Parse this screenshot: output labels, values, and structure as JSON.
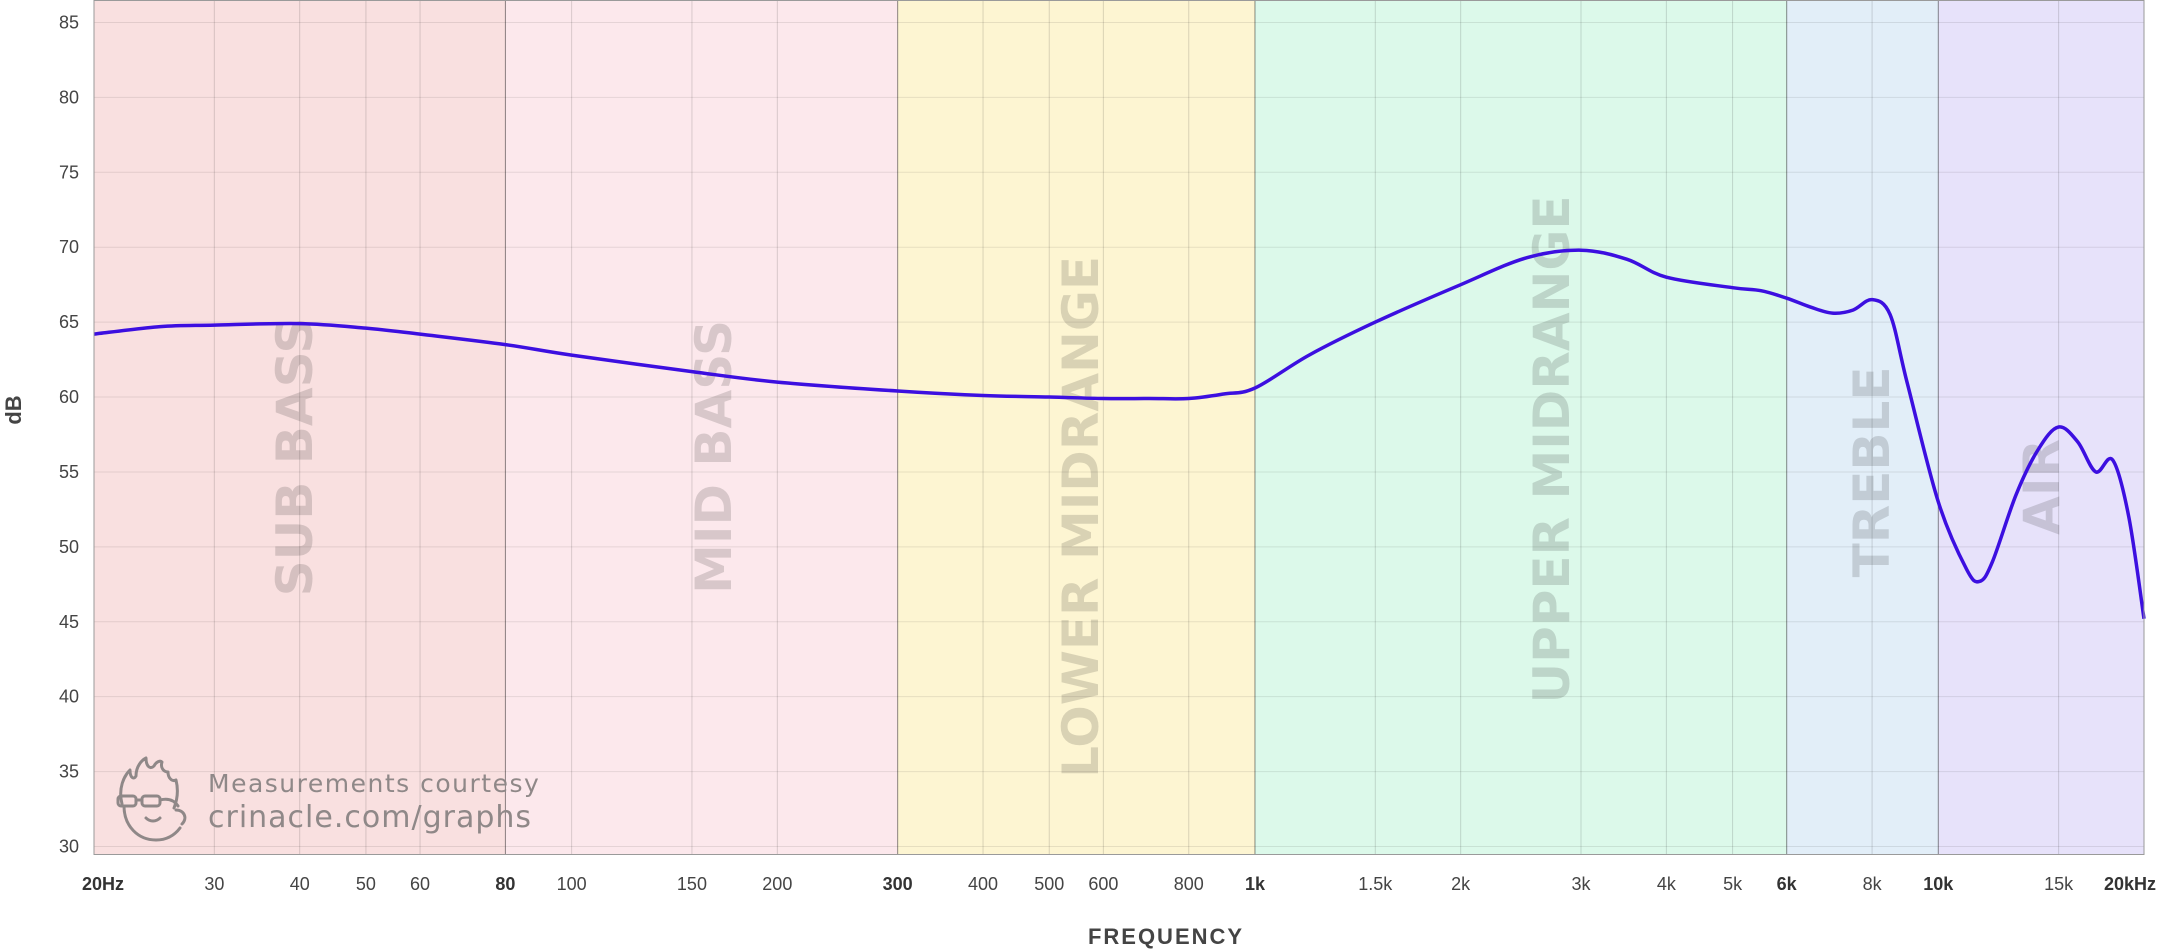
{
  "chart_data": {
    "type": "line",
    "xlabel": "FREQUENCY",
    "ylabel": "dB",
    "x_scale": "log",
    "xlim": [
      20,
      20000
    ],
    "ylim": [
      29.5,
      86.5
    ],
    "grid": true,
    "y_ticks": [
      30,
      35,
      40,
      45,
      50,
      55,
      60,
      65,
      70,
      75,
      80,
      85
    ],
    "x_ticks": [
      {
        "value": 20,
        "label": "20Hz",
        "boundary": true
      },
      {
        "value": 30,
        "label": "30",
        "boundary": false
      },
      {
        "value": 40,
        "label": "40",
        "boundary": false
      },
      {
        "value": 50,
        "label": "50",
        "boundary": false
      },
      {
        "value": 60,
        "label": "60",
        "boundary": false
      },
      {
        "value": 80,
        "label": "80",
        "boundary": true
      },
      {
        "value": 100,
        "label": "100",
        "boundary": false
      },
      {
        "value": 150,
        "label": "150",
        "boundary": false
      },
      {
        "value": 200,
        "label": "200",
        "boundary": false
      },
      {
        "value": 300,
        "label": "300",
        "boundary": true
      },
      {
        "value": 400,
        "label": "400",
        "boundary": false
      },
      {
        "value": 500,
        "label": "500",
        "boundary": false
      },
      {
        "value": 600,
        "label": "600",
        "boundary": false
      },
      {
        "value": 800,
        "label": "800",
        "boundary": false
      },
      {
        "value": 1000,
        "label": "1k",
        "boundary": true
      },
      {
        "value": 1500,
        "label": "1.5k",
        "boundary": false
      },
      {
        "value": 2000,
        "label": "2k",
        "boundary": false
      },
      {
        "value": 3000,
        "label": "3k",
        "boundary": false
      },
      {
        "value": 4000,
        "label": "4k",
        "boundary": false
      },
      {
        "value": 5000,
        "label": "5k",
        "boundary": false
      },
      {
        "value": 6000,
        "label": "6k",
        "boundary": true
      },
      {
        "value": 8000,
        "label": "8k",
        "boundary": false
      },
      {
        "value": 10000,
        "label": "10k",
        "boundary": true
      },
      {
        "value": 15000,
        "label": "15k",
        "boundary": false
      },
      {
        "value": 20000,
        "label": "20kHz",
        "boundary": true
      }
    ],
    "bands": [
      {
        "name": "SUB BASS",
        "from": 20,
        "to": 80,
        "color": "#f9e0e0",
        "label_y": 56
      },
      {
        "name": "MID BASS",
        "from": 80,
        "to": 300,
        "color": "#fce8ec",
        "label_y": 56
      },
      {
        "name": "LOWER MIDRANGE",
        "from": 300,
        "to": 1000,
        "color": "#fdf5d2",
        "label_y": 52
      },
      {
        "name": "UPPER MIDRANGE",
        "from": 1000,
        "to": 6000,
        "color": "#dcf9ea",
        "label_y": 56.5
      },
      {
        "name": "TREBLE",
        "from": 6000,
        "to": 10000,
        "color": "#e2eef8",
        "label_y": 55
      },
      {
        "name": "AIR",
        "from": 10000,
        "to": 20000,
        "color": "#e7e2fa",
        "label_y": 54
      }
    ],
    "series": [
      {
        "color": "#3c0fe0",
        "x": [
          20,
          25,
          30,
          40,
          50,
          60,
          80,
          100,
          150,
          200,
          300,
          400,
          500,
          600,
          700,
          800,
          900,
          1000,
          1200,
          1500,
          2000,
          2500,
          3000,
          3500,
          4000,
          5000,
          5500,
          6000,
          6500,
          7000,
          7500,
          8000,
          8500,
          9000,
          10000,
          11000,
          11500,
          12000,
          13000,
          14000,
          15000,
          16000,
          17000,
          18000,
          19000,
          20000
        ],
        "y": [
          64.2,
          64.7,
          64.8,
          64.9,
          64.6,
          64.2,
          63.5,
          62.8,
          61.7,
          61.0,
          60.4,
          60.1,
          60.0,
          59.9,
          59.9,
          59.9,
          60.2,
          60.6,
          62.8,
          65.0,
          67.5,
          69.3,
          69.8,
          69.2,
          68.0,
          67.3,
          67.1,
          66.6,
          66.0,
          65.6,
          65.8,
          66.5,
          65.5,
          61.0,
          53.0,
          48.5,
          47.7,
          49.0,
          53.5,
          56.5,
          58.0,
          57.0,
          55.0,
          55.8,
          52.0,
          45.2
        ]
      }
    ]
  },
  "watermark": {
    "line1": "Measurements courtesy",
    "line2": "crinacle.com/graphs"
  }
}
